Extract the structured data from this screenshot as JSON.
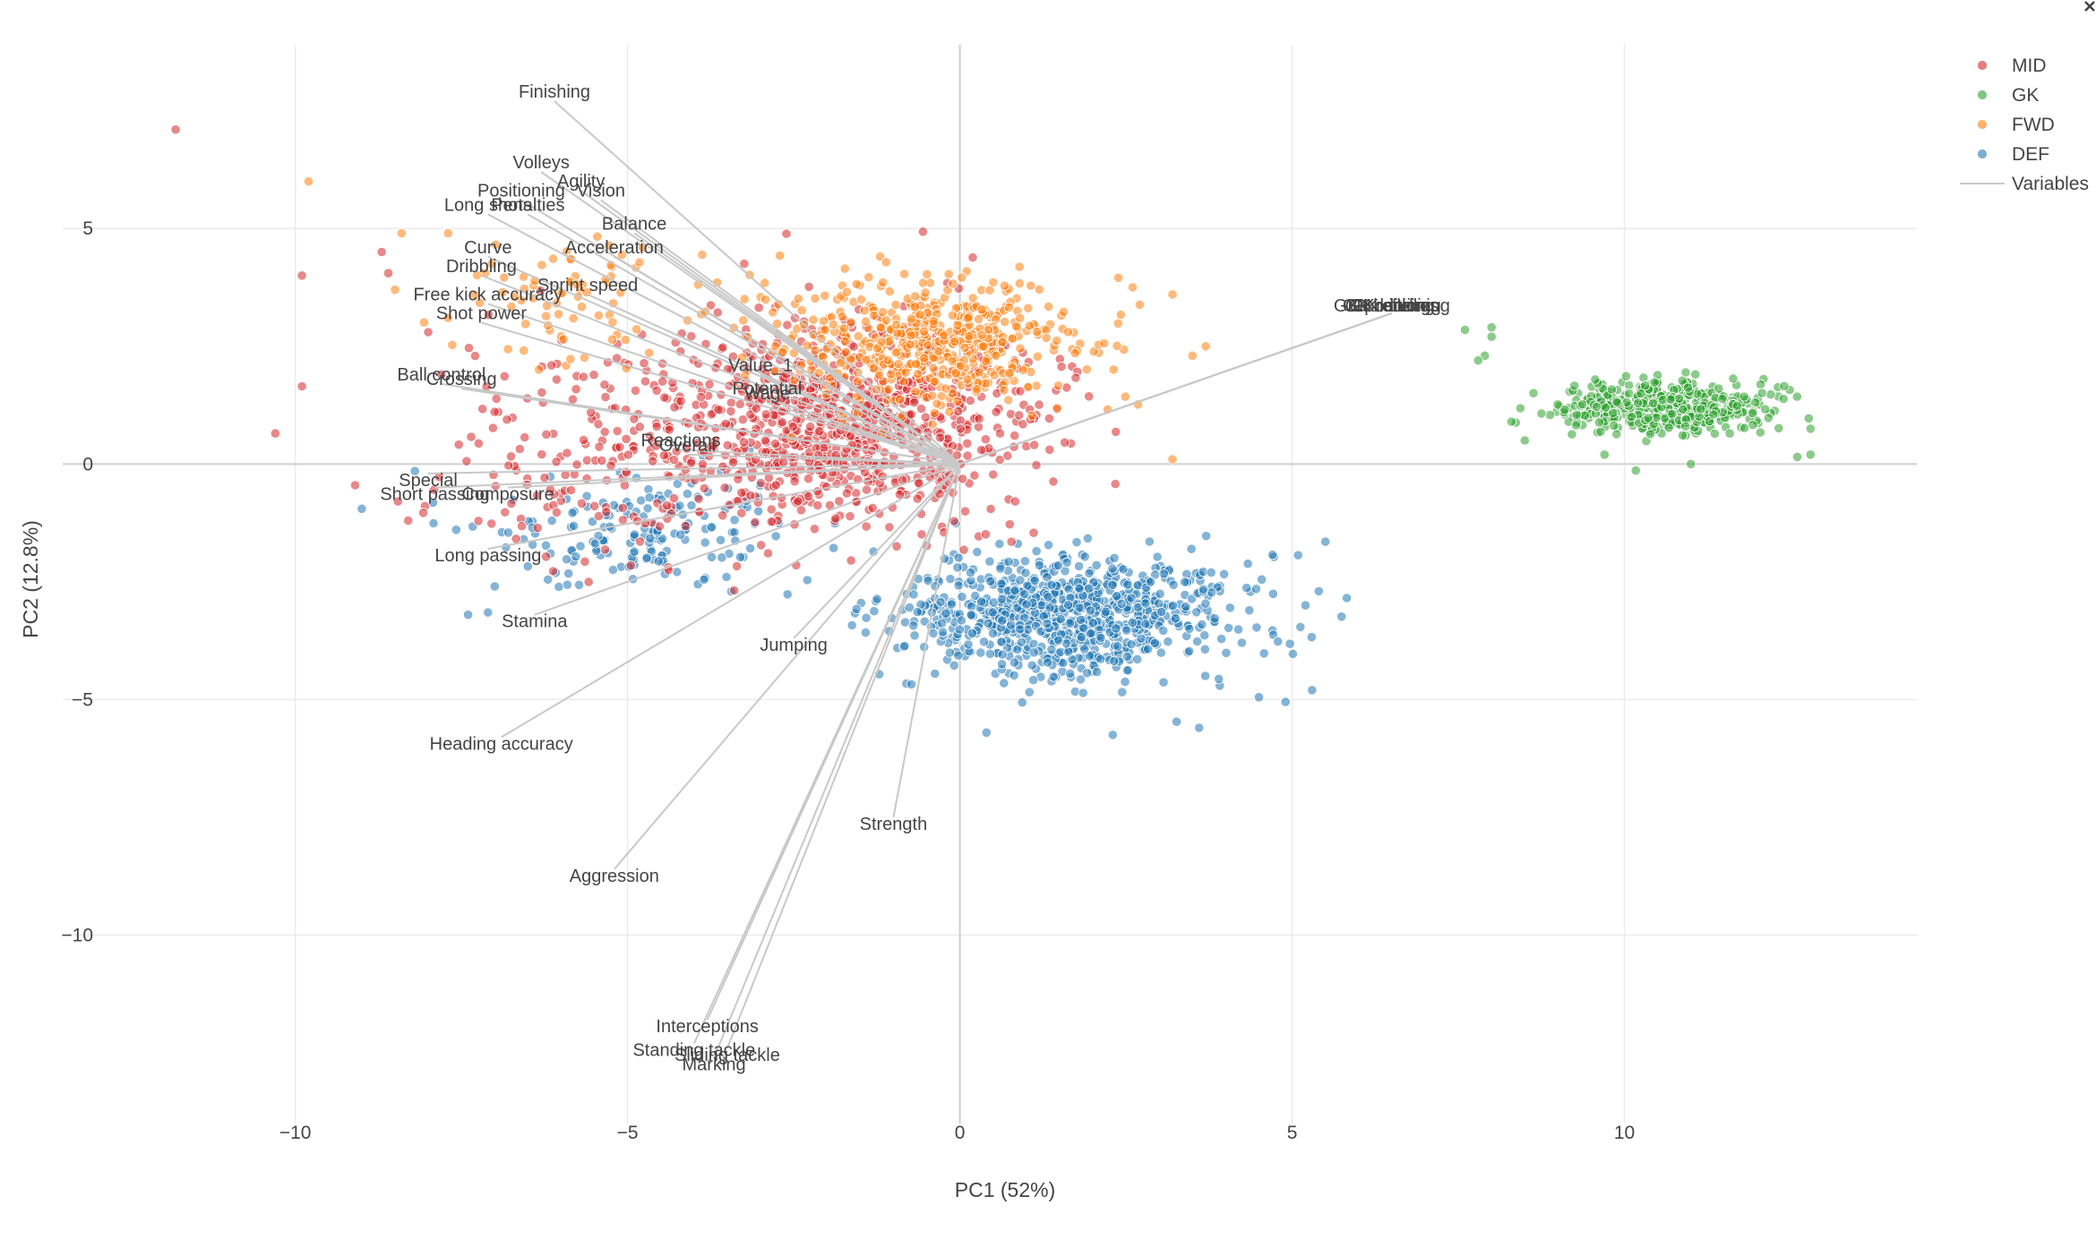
{
  "chart_data": {
    "type": "scatter",
    "title": "",
    "xlabel": "PC1 (52%)",
    "ylabel": "PC2 (12.8%)",
    "xlim": [
      -13.5,
      14.4
    ],
    "ylim": [
      -14.0,
      8.9
    ],
    "x_ticks": [
      -10,
      -5,
      0,
      5,
      10
    ],
    "y_ticks": [
      5,
      0,
      -5,
      -10
    ],
    "x_tick_labels": [
      "−10",
      "−5",
      "0",
      "5",
      "10"
    ],
    "y_tick_labels": [
      "5",
      "0",
      "−5",
      "−10"
    ],
    "grid": true,
    "legend_position": "top-right",
    "series": [
      {
        "name": "MID",
        "color": "#d62728",
        "clusters": [
          {
            "cx": -1.8,
            "cy": 0.9,
            "sx": 2.3,
            "sy": 1.7,
            "n": 900
          },
          {
            "cx": -5.5,
            "cy": 0.3,
            "sx": 1.8,
            "sy": 1.9,
            "n": 160
          }
        ],
        "points": [
          [
            -11.8,
            7.1
          ],
          [
            -10.3,
            0.65
          ],
          [
            -9.9,
            4.0
          ],
          [
            -9.9,
            1.65
          ],
          [
            -9.1,
            -0.45
          ],
          [
            -8.7,
            4.5
          ],
          [
            -8.6,
            4.05
          ],
          [
            -8.3,
            -1.2
          ],
          [
            -8.0,
            2.8
          ],
          [
            -7.8,
            1.9
          ]
        ]
      },
      {
        "name": "GK",
        "color": "#2ca02c",
        "clusters": [
          {
            "cx": 10.6,
            "cy": 1.2,
            "sx": 1.2,
            "sy": 0.45,
            "n": 460
          }
        ],
        "points": [
          [
            7.6,
            2.85
          ],
          [
            8.0,
            2.9
          ],
          [
            8.0,
            2.7
          ],
          [
            7.9,
            2.3
          ],
          [
            7.8,
            2.2
          ],
          [
            8.3,
            0.9
          ],
          [
            8.5,
            0.5
          ],
          [
            9.7,
            0.2
          ],
          [
            11.0,
            0.0
          ],
          [
            12.6,
            0.15
          ],
          [
            12.8,
            0.75
          ],
          [
            12.8,
            0.2
          ]
        ]
      },
      {
        "name": "FWD",
        "color": "#ff7f0e",
        "clusters": [
          {
            "cx": -0.4,
            "cy": 2.5,
            "sx": 1.8,
            "sy": 1.1,
            "n": 520
          },
          {
            "cx": -5.6,
            "cy": 3.6,
            "sx": 1.6,
            "sy": 1.1,
            "n": 80
          }
        ],
        "points": [
          [
            -9.8,
            6.0
          ],
          [
            -8.4,
            4.9
          ],
          [
            -8.5,
            3.7
          ],
          [
            -7.7,
            4.9
          ],
          [
            -7.7,
            3.1
          ],
          [
            2.6,
            3.75
          ],
          [
            3.2,
            3.6
          ],
          [
            3.7,
            2.5
          ],
          [
            3.5,
            2.3
          ],
          [
            3.2,
            0.1
          ]
        ]
      },
      {
        "name": "DEF",
        "color": "#1f77b4",
        "clusters": [
          {
            "cx": 1.6,
            "cy": -3.2,
            "sx": 2.0,
            "sy": 1.0,
            "n": 850
          },
          {
            "cx": -4.8,
            "cy": -1.4,
            "sx": 1.9,
            "sy": 1.1,
            "n": 170
          }
        ],
        "points": [
          [
            -9.0,
            -0.95
          ],
          [
            -8.2,
            -0.15
          ],
          [
            -7.4,
            -3.2
          ],
          [
            -7.1,
            -3.15
          ],
          [
            -7.0,
            -2.6
          ],
          [
            5.5,
            -1.65
          ],
          [
            5.4,
            -2.7
          ],
          [
            5.2,
            -3.0
          ],
          [
            5.3,
            -4.8
          ],
          [
            4.9,
            -5.05
          ],
          [
            4.5,
            -4.95
          ],
          [
            3.6,
            -5.6
          ],
          [
            2.3,
            -5.75
          ],
          [
            0.4,
            -5.7
          ]
        ]
      }
    ],
    "variables": {
      "name": "Variables",
      "color": "#c8c8c8",
      "vectors": [
        {
          "label": "Finishing",
          "x": -6.1,
          "y": 7.7
        },
        {
          "label": "Volleys",
          "x": -6.3,
          "y": 6.2
        },
        {
          "label": "Agility",
          "x": -5.7,
          "y": 5.8
        },
        {
          "label": "Positioning",
          "x": -6.6,
          "y": 5.6
        },
        {
          "label": "Vision",
          "x": -5.4,
          "y": 5.6
        },
        {
          "label": "Long shots",
          "x": -7.1,
          "y": 5.3
        },
        {
          "label": "Penalties",
          "x": -6.5,
          "y": 5.3
        },
        {
          "label": "Balance",
          "x": -4.9,
          "y": 4.9
        },
        {
          "label": "Curve",
          "x": -7.1,
          "y": 4.4
        },
        {
          "label": "Acceleration",
          "x": -5.2,
          "y": 4.4
        },
        {
          "label": "Dribbling",
          "x": -7.2,
          "y": 4.0
        },
        {
          "label": "Sprint speed",
          "x": -5.6,
          "y": 3.6
        },
        {
          "label": "Free kick accuracy",
          "x": -7.1,
          "y": 3.4
        },
        {
          "label": "Shot power",
          "x": -7.2,
          "y": 3.0
        },
        {
          "label": "Value_1",
          "x": -3.0,
          "y": 1.9
        },
        {
          "label": "Ball control",
          "x": -7.8,
          "y": 1.7
        },
        {
          "label": "Crossing",
          "x": -7.5,
          "y": 1.6
        },
        {
          "label": "Potential",
          "x": -2.9,
          "y": 1.4
        },
        {
          "label": "Wage",
          "x": -2.9,
          "y": 1.3
        },
        {
          "label": "Reactions",
          "x": -4.2,
          "y": 0.3
        },
        {
          "label": "Overall",
          "x": -4.1,
          "y": 0.2
        },
        {
          "label": "Special",
          "x": -8.0,
          "y": -0.2
        },
        {
          "label": "Short passing",
          "x": -7.9,
          "y": -0.5
        },
        {
          "label": "Composure",
          "x": -6.8,
          "y": -0.5
        },
        {
          "label": "Long passing",
          "x": -7.1,
          "y": -1.8
        },
        {
          "label": "Stamina",
          "x": -6.4,
          "y": -3.2
        },
        {
          "label": "Jumping",
          "x": -2.5,
          "y": -3.7
        },
        {
          "label": "Heading accuracy",
          "x": -6.9,
          "y": -5.8
        },
        {
          "label": "Strength",
          "x": -1.0,
          "y": -7.5
        },
        {
          "label": "Aggression",
          "x": -5.2,
          "y": -8.6
        },
        {
          "label": "Interceptions",
          "x": -3.8,
          "y": -11.8
        },
        {
          "label": "Standing tackle",
          "x": -4.0,
          "y": -12.3
        },
        {
          "label": "Sliding tackle",
          "x": -3.5,
          "y": -12.4
        },
        {
          "label": "Marking",
          "x": -3.7,
          "y": -12.6
        },
        {
          "label": "GK diving",
          "x": 6.5,
          "y": 3.2
        },
        {
          "label": "GK handling",
          "x": 6.5,
          "y": 3.2
        },
        {
          "label": "GK kicking",
          "x": 6.5,
          "y": 3.2
        },
        {
          "label": "GK positioning",
          "x": 6.5,
          "y": 3.2
        },
        {
          "label": "GK reflexes",
          "x": 6.5,
          "y": 3.2
        }
      ]
    }
  }
}
